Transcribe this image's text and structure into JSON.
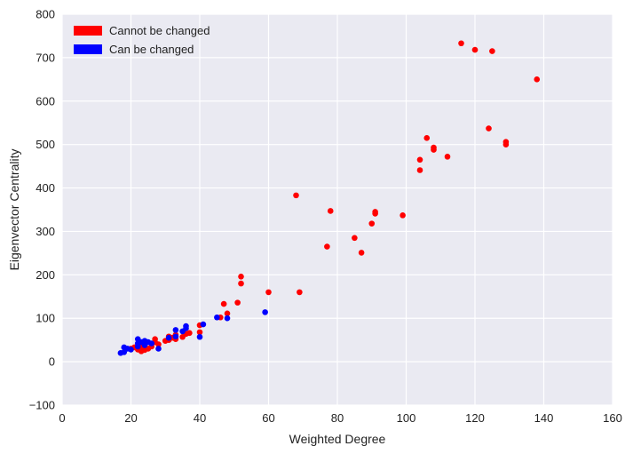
{
  "chart_data": {
    "type": "scatter",
    "xlabel": "Weighted Degree",
    "ylabel": "Eigenvector Centrality",
    "xlim": [
      0,
      160
    ],
    "ylim": [
      -100,
      800
    ],
    "xticks": [
      "0",
      "20",
      "40",
      "60",
      "80",
      "100",
      "120",
      "140",
      "160"
    ],
    "yticks": [
      "−100",
      "0",
      "100",
      "200",
      "300",
      "400",
      "500",
      "600",
      "700",
      "800"
    ],
    "grid": true,
    "legend_position": "top-left",
    "background": "#eaeaf2",
    "series": [
      {
        "name": "Cannot be changed",
        "color": "#ff0000",
        "points": [
          [
            116,
            733
          ],
          [
            120,
            718
          ],
          [
            125,
            715
          ],
          [
            138,
            650
          ],
          [
            124,
            537
          ],
          [
            129,
            506
          ],
          [
            129,
            500
          ],
          [
            106,
            515
          ],
          [
            108,
            493
          ],
          [
            108,
            488
          ],
          [
            112,
            472
          ],
          [
            104,
            465
          ],
          [
            104,
            441
          ],
          [
            68,
            383
          ],
          [
            78,
            347
          ],
          [
            91,
            345
          ],
          [
            91,
            341
          ],
          [
            99,
            337
          ],
          [
            90,
            318
          ],
          [
            85,
            285
          ],
          [
            77,
            265
          ],
          [
            87,
            251
          ],
          [
            52,
            196
          ],
          [
            52,
            180
          ],
          [
            60,
            160
          ],
          [
            69,
            160
          ],
          [
            51,
            136
          ],
          [
            47,
            133
          ],
          [
            48,
            111
          ],
          [
            46,
            102
          ],
          [
            40,
            84
          ],
          [
            40,
            68
          ],
          [
            37,
            66
          ],
          [
            36,
            64
          ],
          [
            35,
            57
          ],
          [
            33,
            62
          ],
          [
            33,
            52
          ],
          [
            32,
            55
          ],
          [
            31,
            58
          ],
          [
            31,
            50
          ],
          [
            30,
            48
          ],
          [
            27,
            52
          ],
          [
            27,
            45
          ],
          [
            26,
            35
          ],
          [
            25,
            30
          ],
          [
            24,
            34
          ],
          [
            24,
            27
          ],
          [
            23,
            30
          ],
          [
            23,
            24
          ],
          [
            22,
            28
          ],
          [
            21,
            33
          ],
          [
            20,
            30
          ],
          [
            23,
            37
          ],
          [
            28,
            40
          ]
        ]
      },
      {
        "name": "Can be changed",
        "color": "#0000ff",
        "points": [
          [
            59,
            114
          ],
          [
            48,
            100
          ],
          [
            45,
            102
          ],
          [
            41,
            86
          ],
          [
            40,
            57
          ],
          [
            36,
            82
          ],
          [
            36,
            77
          ],
          [
            35,
            70
          ],
          [
            33,
            73
          ],
          [
            33,
            58
          ],
          [
            31,
            55
          ],
          [
            28,
            30
          ],
          [
            24,
            48
          ],
          [
            23,
            45
          ],
          [
            22,
            52
          ],
          [
            22,
            42
          ],
          [
            25,
            45
          ],
          [
            20,
            28
          ],
          [
            19,
            30
          ],
          [
            18,
            33
          ],
          [
            17,
            20
          ],
          [
            18,
            22
          ],
          [
            22,
            35
          ],
          [
            24,
            38
          ],
          [
            26,
            42
          ]
        ]
      }
    ]
  }
}
